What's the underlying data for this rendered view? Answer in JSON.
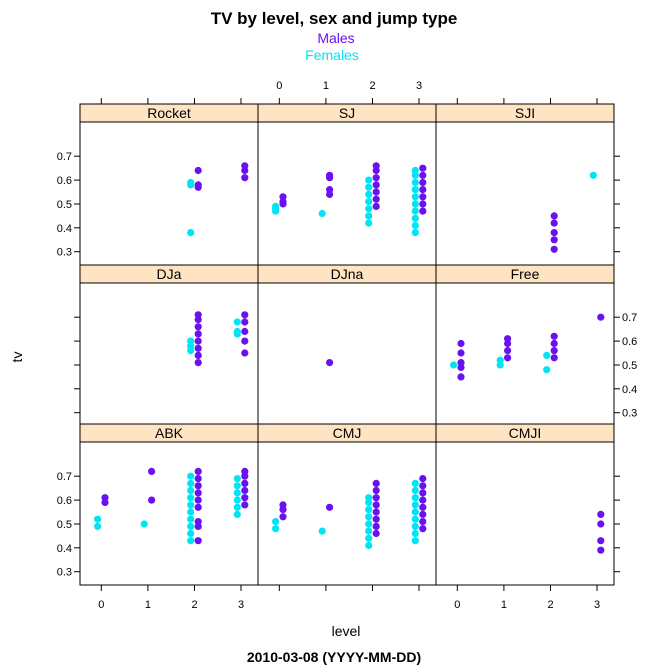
{
  "chart_data": {
    "type": "scatter",
    "title": "TV by level, sex and jump type",
    "xlabel": "level",
    "ylabel": "tv",
    "footer": "2010-03-08 (YYYY-MM-DD)",
    "x_ticks": [
      0,
      1,
      2,
      3
    ],
    "y_ticks": [
      0.3,
      0.4,
      0.5,
      0.6,
      0.7
    ],
    "xlim": [
      -0.35,
      3.3
    ],
    "ylim": [
      0.28,
      0.77
    ],
    "colors": {
      "Males": "#6a11f0",
      "Females": "#00e5f5",
      "strip": "#ffe4c4"
    },
    "legend": [
      {
        "name": "Males",
        "color": "#6a11f0"
      },
      {
        "name": "Females",
        "color": "#00e5f5"
      }
    ],
    "panels": [
      {
        "name": "Rocket",
        "series": [
          {
            "name": "Females",
            "points": [
              [
                1.92,
                0.59
              ],
              [
                1.92,
                0.58
              ],
              [
                1.92,
                0.38
              ]
            ]
          },
          {
            "name": "Males",
            "points": [
              [
                2.08,
                0.64
              ],
              [
                2.08,
                0.57
              ],
              [
                2.08,
                0.58
              ],
              [
                3.08,
                0.66
              ],
              [
                3.08,
                0.64
              ],
              [
                3.08,
                0.61
              ]
            ]
          }
        ]
      },
      {
        "name": "SJ",
        "series": [
          {
            "name": "Females",
            "points": [
              [
                -0.08,
                0.49
              ],
              [
                -0.08,
                0.48
              ],
              [
                -0.08,
                0.47
              ],
              [
                0.92,
                0.46
              ],
              [
                1.92,
                0.42
              ],
              [
                1.92,
                0.45
              ],
              [
                1.92,
                0.48
              ],
              [
                1.92,
                0.51
              ],
              [
                1.92,
                0.54
              ],
              [
                1.92,
                0.57
              ],
              [
                1.92,
                0.6
              ],
              [
                2.92,
                0.38
              ],
              [
                2.92,
                0.41
              ],
              [
                2.92,
                0.44
              ],
              [
                2.92,
                0.47
              ],
              [
                2.92,
                0.5
              ],
              [
                2.92,
                0.53
              ],
              [
                2.92,
                0.56
              ],
              [
                2.92,
                0.59
              ],
              [
                2.92,
                0.62
              ],
              [
                2.92,
                0.64
              ]
            ]
          },
          {
            "name": "Males",
            "points": [
              [
                0.08,
                0.53
              ],
              [
                0.08,
                0.51
              ],
              [
                0.08,
                0.5
              ],
              [
                1.08,
                0.62
              ],
              [
                1.08,
                0.61
              ],
              [
                1.08,
                0.56
              ],
              [
                1.08,
                0.54
              ],
              [
                2.08,
                0.49
              ],
              [
                2.08,
                0.52
              ],
              [
                2.08,
                0.55
              ],
              [
                2.08,
                0.58
              ],
              [
                2.08,
                0.61
              ],
              [
                2.08,
                0.64
              ],
              [
                2.08,
                0.66
              ],
              [
                3.08,
                0.47
              ],
              [
                3.08,
                0.5
              ],
              [
                3.08,
                0.53
              ],
              [
                3.08,
                0.56
              ],
              [
                3.08,
                0.59
              ],
              [
                3.08,
                0.62
              ],
              [
                3.08,
                0.65
              ]
            ]
          }
        ]
      },
      {
        "name": "SJI",
        "series": [
          {
            "name": "Females",
            "points": [
              [
                2.92,
                0.62
              ]
            ]
          },
          {
            "name": "Males",
            "points": [
              [
                2.08,
                0.45
              ],
              [
                2.08,
                0.42
              ],
              [
                2.08,
                0.38
              ],
              [
                2.08,
                0.35
              ],
              [
                2.08,
                0.31
              ]
            ]
          }
        ]
      },
      {
        "name": "DJa",
        "series": [
          {
            "name": "Females",
            "points": [
              [
                1.92,
                0.6
              ],
              [
                1.92,
                0.58
              ],
              [
                1.92,
                0.56
              ],
              [
                2.92,
                0.68
              ],
              [
                2.92,
                0.64
              ],
              [
                2.92,
                0.63
              ]
            ]
          },
          {
            "name": "Males",
            "points": [
              [
                2.08,
                0.51
              ],
              [
                2.08,
                0.54
              ],
              [
                2.08,
                0.57
              ],
              [
                2.08,
                0.6
              ],
              [
                2.08,
                0.63
              ],
              [
                2.08,
                0.66
              ],
              [
                2.08,
                0.69
              ],
              [
                2.08,
                0.71
              ],
              [
                3.08,
                0.55
              ],
              [
                3.08,
                0.6
              ],
              [
                3.08,
                0.64
              ],
              [
                3.08,
                0.68
              ],
              [
                3.08,
                0.71
              ]
            ]
          }
        ]
      },
      {
        "name": "DJna",
        "series": [
          {
            "name": "Males",
            "points": [
              [
                1.08,
                0.51
              ]
            ]
          }
        ]
      },
      {
        "name": "Free",
        "series": [
          {
            "name": "Females",
            "points": [
              [
                -0.08,
                0.5
              ],
              [
                0.92,
                0.5
              ],
              [
                0.92,
                0.52
              ],
              [
                1.92,
                0.48
              ],
              [
                1.92,
                0.54
              ]
            ]
          },
          {
            "name": "Males",
            "points": [
              [
                0.08,
                0.45
              ],
              [
                0.08,
                0.49
              ],
              [
                0.08,
                0.51
              ],
              [
                0.08,
                0.55
              ],
              [
                0.08,
                0.59
              ],
              [
                1.08,
                0.53
              ],
              [
                1.08,
                0.56
              ],
              [
                1.08,
                0.59
              ],
              [
                1.08,
                0.61
              ],
              [
                2.08,
                0.53
              ],
              [
                2.08,
                0.56
              ],
              [
                2.08,
                0.59
              ],
              [
                2.08,
                0.62
              ],
              [
                3.08,
                0.7
              ]
            ]
          }
        ]
      },
      {
        "name": "ABK",
        "series": [
          {
            "name": "Females",
            "points": [
              [
                -0.08,
                0.52
              ],
              [
                -0.08,
                0.49
              ],
              [
                0.92,
                0.5
              ],
              [
                1.92,
                0.43
              ],
              [
                1.92,
                0.46
              ],
              [
                1.92,
                0.49
              ],
              [
                1.92,
                0.52
              ],
              [
                1.92,
                0.55
              ],
              [
                1.92,
                0.58
              ],
              [
                1.92,
                0.61
              ],
              [
                1.92,
                0.64
              ],
              [
                1.92,
                0.67
              ],
              [
                1.92,
                0.7
              ],
              [
                2.92,
                0.54
              ],
              [
                2.92,
                0.57
              ],
              [
                2.92,
                0.6
              ],
              [
                2.92,
                0.63
              ],
              [
                2.92,
                0.66
              ],
              [
                2.92,
                0.69
              ]
            ]
          },
          {
            "name": "Males",
            "points": [
              [
                0.08,
                0.61
              ],
              [
                0.08,
                0.59
              ],
              [
                1.08,
                0.72
              ],
              [
                1.08,
                0.6
              ],
              [
                2.08,
                0.43
              ],
              [
                2.08,
                0.49
              ],
              [
                2.08,
                0.51
              ],
              [
                2.08,
                0.57
              ],
              [
                2.08,
                0.6
              ],
              [
                2.08,
                0.63
              ],
              [
                2.08,
                0.66
              ],
              [
                2.08,
                0.69
              ],
              [
                2.08,
                0.72
              ],
              [
                3.08,
                0.58
              ],
              [
                3.08,
                0.61
              ],
              [
                3.08,
                0.64
              ],
              [
                3.08,
                0.67
              ],
              [
                3.08,
                0.7
              ],
              [
                3.08,
                0.72
              ]
            ]
          }
        ]
      },
      {
        "name": "CMJ",
        "series": [
          {
            "name": "Females",
            "points": [
              [
                -0.08,
                0.51
              ],
              [
                -0.08,
                0.48
              ],
              [
                0.92,
                0.47
              ],
              [
                1.92,
                0.41
              ],
              [
                1.92,
                0.44
              ],
              [
                1.92,
                0.47
              ],
              [
                1.92,
                0.5
              ],
              [
                1.92,
                0.53
              ],
              [
                1.92,
                0.56
              ],
              [
                1.92,
                0.59
              ],
              [
                1.92,
                0.61
              ],
              [
                2.92,
                0.43
              ],
              [
                2.92,
                0.46
              ],
              [
                2.92,
                0.49
              ],
              [
                2.92,
                0.52
              ],
              [
                2.92,
                0.55
              ],
              [
                2.92,
                0.58
              ],
              [
                2.92,
                0.61
              ],
              [
                2.92,
                0.64
              ],
              [
                2.92,
                0.67
              ]
            ]
          },
          {
            "name": "Males",
            "points": [
              [
                0.08,
                0.58
              ],
              [
                0.08,
                0.56
              ],
              [
                0.08,
                0.53
              ],
              [
                1.08,
                0.57
              ],
              [
                2.08,
                0.46
              ],
              [
                2.08,
                0.49
              ],
              [
                2.08,
                0.52
              ],
              [
                2.08,
                0.55
              ],
              [
                2.08,
                0.58
              ],
              [
                2.08,
                0.61
              ],
              [
                2.08,
                0.64
              ],
              [
                2.08,
                0.67
              ],
              [
                3.08,
                0.48
              ],
              [
                3.08,
                0.51
              ],
              [
                3.08,
                0.54
              ],
              [
                3.08,
                0.57
              ],
              [
                3.08,
                0.6
              ],
              [
                3.08,
                0.63
              ],
              [
                3.08,
                0.66
              ],
              [
                3.08,
                0.69
              ]
            ]
          }
        ]
      },
      {
        "name": "CMJI",
        "series": [
          {
            "name": "Males",
            "points": [
              [
                3.08,
                0.54
              ],
              [
                3.08,
                0.5
              ],
              [
                3.08,
                0.43
              ],
              [
                3.08,
                0.39
              ]
            ]
          }
        ]
      }
    ]
  }
}
